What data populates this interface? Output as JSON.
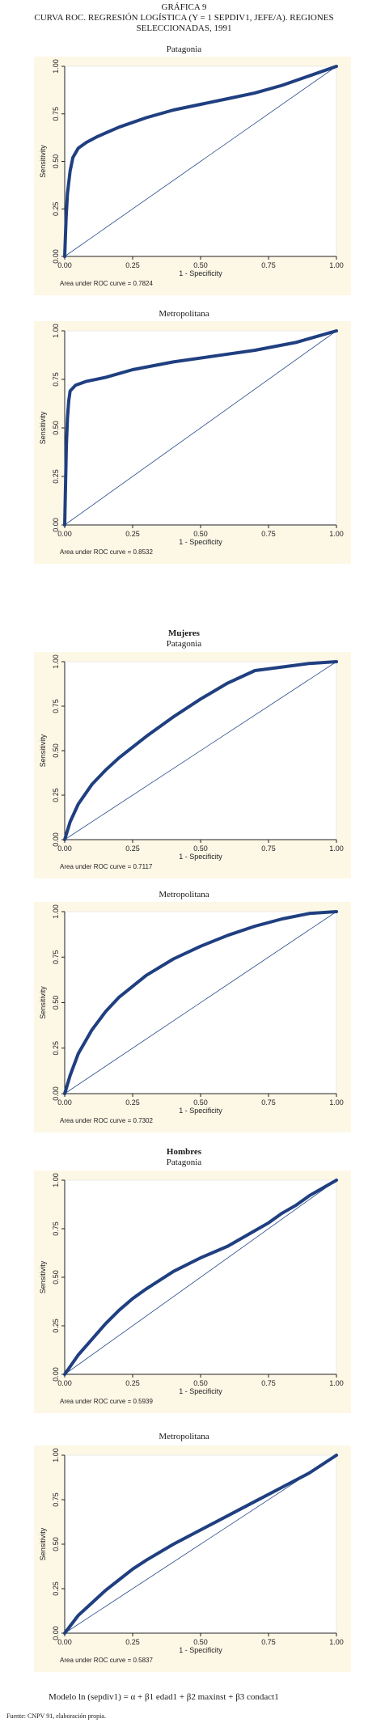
{
  "header": {
    "line1": "GRÁFICA 9",
    "line2": "CURVA ROC. REGRESIÓN LOGÍSTICA (Y = 1 SEPDIV1, JEFE/A). REGIONES",
    "line3": "SELECCIONADAS, 1991"
  },
  "groups": {
    "mujeres": "Mujeres",
    "hombres": "Hombres"
  },
  "footer": {
    "model": "Modelo ln (sepdiv1) = α + β1 edad1 + β2 maxinst + β3 condact1",
    "source": "Fuente: CNPV 91, elaboración propia."
  },
  "chart_data": [
    {
      "type": "line",
      "title": "Patagonia",
      "group": "",
      "xlabel": "1 - Specificity",
      "ylabel": "Sensitivity",
      "xticks": [
        "0.00",
        "0.25",
        "0.50",
        "0.75",
        "1.00"
      ],
      "yticks": [
        "0.00",
        "0.25",
        "0.50",
        "0.75",
        "1.00"
      ],
      "xlim": [
        0,
        1
      ],
      "ylim": [
        0,
        1
      ],
      "auc_label": "Area under ROC curve = 0.7824",
      "series": [
        {
          "x": [
            0,
            0.005,
            0.01,
            0.02,
            0.03,
            0.05,
            0.08,
            0.12,
            0.2,
            0.3,
            0.4,
            0.5,
            0.6,
            0.7,
            0.8,
            0.9,
            1.0
          ],
          "y": [
            0,
            0.2,
            0.33,
            0.45,
            0.52,
            0.57,
            0.6,
            0.63,
            0.68,
            0.73,
            0.77,
            0.8,
            0.83,
            0.86,
            0.9,
            0.95,
            1.0
          ]
        },
        {
          "x": [
            0,
            1
          ],
          "y": [
            0,
            1
          ]
        }
      ]
    },
    {
      "type": "line",
      "title": "Metropolitana",
      "group": "",
      "xlabel": "1 - Specificity",
      "ylabel": "Sensitivity",
      "xticks": [
        "0.00",
        "0.25",
        "0.50",
        "0.75",
        "1.00"
      ],
      "yticks": [
        "0.00",
        "0.25",
        "0.50",
        "0.75",
        "1.00"
      ],
      "xlim": [
        0,
        1
      ],
      "ylim": [
        0,
        1
      ],
      "auc_label": "Area under ROC curve = 0.8532",
      "series": [
        {
          "x": [
            0,
            0.003,
            0.006,
            0.01,
            0.015,
            0.02,
            0.04,
            0.08,
            0.15,
            0.25,
            0.4,
            0.55,
            0.7,
            0.85,
            1.0
          ],
          "y": [
            0,
            0.2,
            0.4,
            0.55,
            0.64,
            0.69,
            0.72,
            0.74,
            0.76,
            0.8,
            0.84,
            0.87,
            0.9,
            0.94,
            1.0
          ]
        },
        {
          "x": [
            0,
            1
          ],
          "y": [
            0,
            1
          ]
        }
      ]
    },
    {
      "type": "line",
      "title": "Patagonia",
      "group": "Mujeres",
      "xlabel": "1 - Specificity",
      "ylabel": "Sensitivity",
      "xticks": [
        "0.00",
        "0.25",
        "0.50",
        "0.75",
        "1.00"
      ],
      "yticks": [
        "0.00",
        "0.25",
        "0.50",
        "0.75",
        "1.00"
      ],
      "xlim": [
        0,
        1
      ],
      "ylim": [
        0,
        1
      ],
      "auc_label": "Area under ROC curve = 0.7117",
      "series": [
        {
          "x": [
            0,
            0.02,
            0.05,
            0.1,
            0.15,
            0.2,
            0.3,
            0.4,
            0.5,
            0.6,
            0.7,
            0.8,
            0.9,
            1.0
          ],
          "y": [
            0,
            0.1,
            0.2,
            0.31,
            0.39,
            0.46,
            0.58,
            0.69,
            0.79,
            0.88,
            0.95,
            0.97,
            0.99,
            1.0
          ]
        },
        {
          "x": [
            0,
            1
          ],
          "y": [
            0,
            1
          ]
        }
      ]
    },
    {
      "type": "line",
      "title": "Metropolitana",
      "group": "",
      "xlabel": "1 - Specificity",
      "ylabel": "Sensitivity",
      "xticks": [
        "0.00",
        "0.25",
        "0.50",
        "0.75",
        "1.00"
      ],
      "yticks": [
        "0.00",
        "0.25",
        "0.50",
        "0.75",
        "1.00"
      ],
      "xlim": [
        0,
        1
      ],
      "ylim": [
        0,
        1
      ],
      "auc_label": "Area under ROC curve = 0.7302",
      "series": [
        {
          "x": [
            0,
            0.02,
            0.05,
            0.1,
            0.15,
            0.2,
            0.3,
            0.4,
            0.5,
            0.6,
            0.7,
            0.8,
            0.9,
            1.0
          ],
          "y": [
            0,
            0.1,
            0.22,
            0.35,
            0.45,
            0.53,
            0.65,
            0.74,
            0.81,
            0.87,
            0.92,
            0.96,
            0.99,
            1.0
          ]
        },
        {
          "x": [
            0,
            1
          ],
          "y": [
            0,
            1
          ]
        }
      ]
    },
    {
      "type": "line",
      "title": "Patagonia",
      "group": "Hombres",
      "xlabel": "1 - Specificity",
      "ylabel": "Sensitivity",
      "xticks": [
        "0.00",
        "0.25",
        "0.50",
        "0.75",
        "1.00"
      ],
      "yticks": [
        "0.00",
        "0.25",
        "0.50",
        "0.75",
        "1.00"
      ],
      "xlim": [
        0,
        1
      ],
      "ylim": [
        0,
        1
      ],
      "auc_label": "Area under ROC curve = 0.5939",
      "series": [
        {
          "x": [
            0,
            0.05,
            0.1,
            0.15,
            0.2,
            0.25,
            0.3,
            0.4,
            0.5,
            0.6,
            0.65,
            0.7,
            0.75,
            0.8,
            0.85,
            0.9,
            0.95,
            1.0
          ],
          "y": [
            0,
            0.1,
            0.18,
            0.26,
            0.33,
            0.39,
            0.44,
            0.53,
            0.6,
            0.66,
            0.7,
            0.74,
            0.78,
            0.83,
            0.87,
            0.92,
            0.96,
            1.0
          ]
        },
        {
          "x": [
            0,
            1
          ],
          "y": [
            0,
            1
          ]
        }
      ]
    },
    {
      "type": "line",
      "title": "Metropolitana",
      "group": "",
      "xlabel": "1 - Specificity",
      "ylabel": "Sensitivity",
      "xticks": [
        "0.00",
        "0.25",
        "0.50",
        "0.75",
        "1.00"
      ],
      "yticks": [
        "0.00",
        "0.25",
        "0.50",
        "0.75",
        "1.00"
      ],
      "xlim": [
        0,
        1
      ],
      "ylim": [
        0,
        1
      ],
      "auc_label": "Area under ROC curve = 0.5837",
      "series": [
        {
          "x": [
            0,
            0.05,
            0.1,
            0.15,
            0.2,
            0.25,
            0.3,
            0.4,
            0.5,
            0.6,
            0.7,
            0.8,
            0.9,
            1.0
          ],
          "y": [
            0,
            0.1,
            0.17,
            0.24,
            0.3,
            0.36,
            0.41,
            0.5,
            0.58,
            0.66,
            0.74,
            0.82,
            0.9,
            1.0
          ]
        },
        {
          "x": [
            0,
            1
          ],
          "y": [
            0,
            1
          ]
        }
      ]
    }
  ]
}
